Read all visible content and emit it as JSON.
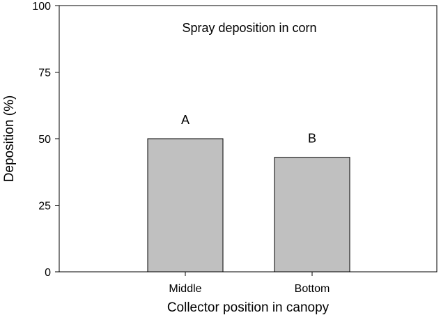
{
  "chart_data": {
    "type": "bar",
    "title": "Spray deposition in corn",
    "xlabel": "Collector position in canopy",
    "ylabel": "Deposition (%)",
    "categories": [
      "Middle",
      "Bottom"
    ],
    "values": [
      50,
      43
    ],
    "significance_labels": [
      "A",
      "B"
    ],
    "ylim": [
      0,
      100
    ],
    "yticks": [
      0,
      25,
      50,
      75,
      100
    ],
    "grid": false,
    "legend": "none",
    "bar_color": "#c0c0c0",
    "bar_edge_color": "#000000"
  }
}
